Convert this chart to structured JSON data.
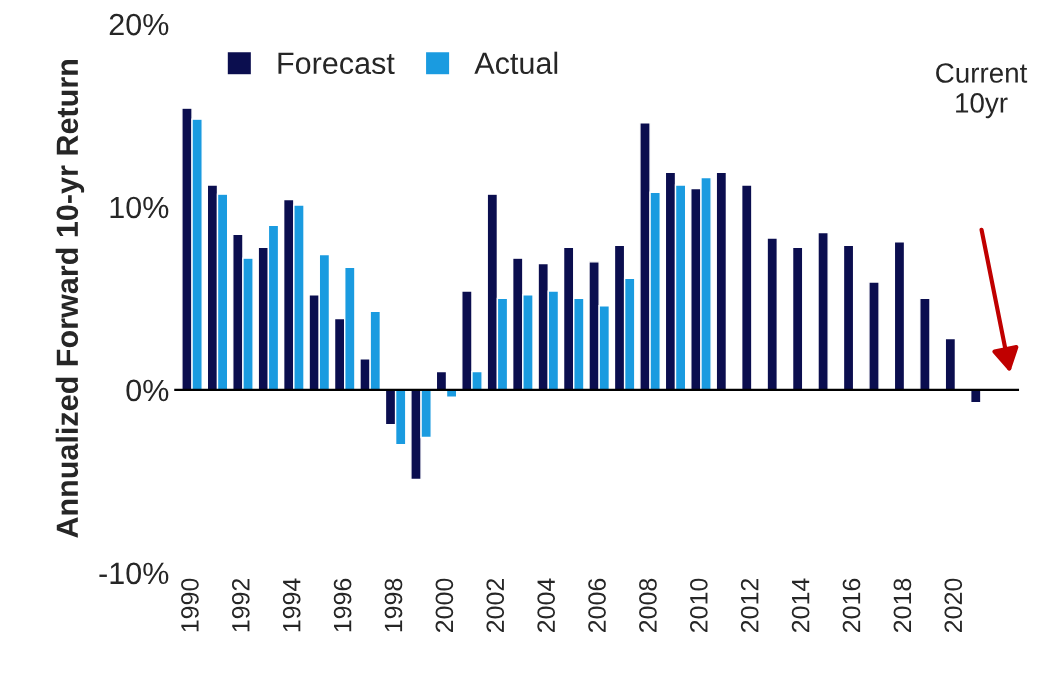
{
  "chart_data": {
    "type": "bar",
    "ylabel": "Annualized Forward 10-yr Return",
    "categories": [
      "1990",
      null,
      "1992",
      null,
      "1994",
      null,
      "1996",
      null,
      "1998",
      null,
      "2000",
      null,
      "2002",
      null,
      "2004",
      null,
      "2006",
      null,
      "2008",
      null,
      "2010",
      null,
      "2012",
      null,
      "2014",
      null,
      "2016",
      null,
      "2018",
      null,
      "2020",
      null
    ],
    "series": [
      {
        "name": "Forecast",
        "color": "#0b0e4f",
        "values": [
          15.4,
          11.2,
          8.5,
          7.8,
          10.4,
          5.2,
          3.9,
          1.7,
          -1.9,
          -4.9,
          1.0,
          5.4,
          10.7,
          7.2,
          6.9,
          7.8,
          7.0,
          7.9,
          14.6,
          11.9,
          11.0,
          11.9,
          11.2,
          8.3,
          7.8,
          8.6,
          7.9,
          5.9,
          8.1,
          5.0,
          2.8,
          -0.7
        ]
      },
      {
        "name": "Actual",
        "color": "#1a9be0",
        "values": [
          14.8,
          10.7,
          7.2,
          9.0,
          10.1,
          7.4,
          6.7,
          4.3,
          -3.0,
          -2.6,
          -0.4,
          1.0,
          5.0,
          5.2,
          5.4,
          5.0,
          4.6,
          6.1,
          10.8,
          11.2,
          11.6,
          null,
          null,
          null,
          null,
          null,
          null,
          null,
          null,
          null,
          null,
          null
        ]
      }
    ],
    "ylim": [
      -10,
      20
    ],
    "yticks": [
      {
        "value": -10,
        "label": "-10%"
      },
      {
        "value": 0,
        "label": "0%"
      },
      {
        "value": 10,
        "label": "10%"
      },
      {
        "value": 20,
        "label": "20%"
      }
    ],
    "ref_lines": [
      {
        "axis": "y",
        "value": 0,
        "color": "#000000"
      }
    ],
    "annotations": [
      "Current\n10yr"
    ],
    "legend": "top left",
    "grid": false
  }
}
